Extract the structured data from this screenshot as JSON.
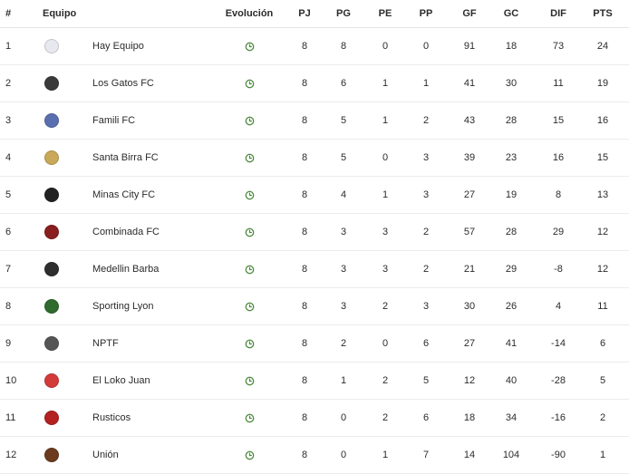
{
  "header": {
    "pos": "#",
    "team": "Equipo",
    "evo": "Evolución",
    "pj": "PJ",
    "pg": "PG",
    "pe": "PE",
    "pp": "PP",
    "gf": "GF",
    "gc": "GC",
    "dif": "DIF",
    "pts": "PTS"
  },
  "rows": [
    {
      "pos": "1",
      "team": "Hay Equipo",
      "pj": "8",
      "pg": "8",
      "pe": "0",
      "pp": "0",
      "gf": "91",
      "gc": "18",
      "dif": "73",
      "pts": "24",
      "logo_icon": "star-crest-icon",
      "logo_color": "#e8e8f0"
    },
    {
      "pos": "2",
      "team": "Los Gatos FC",
      "pj": "8",
      "pg": "6",
      "pe": "1",
      "pp": "1",
      "gf": "41",
      "gc": "30",
      "dif": "11",
      "pts": "19",
      "logo_icon": "cat-crest-icon",
      "logo_color": "#3a3a3a"
    },
    {
      "pos": "3",
      "team": "Famili FC",
      "pj": "8",
      "pg": "5",
      "pe": "1",
      "pp": "2",
      "gf": "43",
      "gc": "28",
      "dif": "15",
      "pts": "16",
      "logo_icon": "shield-crest-icon",
      "logo_color": "#5a6fb0"
    },
    {
      "pos": "4",
      "team": "Santa Birra FC",
      "pj": "8",
      "pg": "5",
      "pe": "0",
      "pp": "3",
      "gf": "39",
      "gc": "23",
      "dif": "16",
      "pts": "15",
      "logo_icon": "round-crest-icon",
      "logo_color": "#c9a85a"
    },
    {
      "pos": "5",
      "team": "Minas City FC",
      "pj": "8",
      "pg": "4",
      "pe": "1",
      "pp": "3",
      "gf": "27",
      "gc": "19",
      "dif": "8",
      "pts": "13",
      "logo_icon": "dark-shield-crest-icon",
      "logo_color": "#222222"
    },
    {
      "pos": "6",
      "team": "Combinada FC",
      "pj": "8",
      "pg": "3",
      "pe": "3",
      "pp": "2",
      "gf": "57",
      "gc": "28",
      "dif": "29",
      "pts": "12",
      "logo_icon": "red-black-crest-icon",
      "logo_color": "#8a1d1d"
    },
    {
      "pos": "7",
      "team": "Medellin Barba",
      "pj": "8",
      "pg": "3",
      "pe": "3",
      "pp": "2",
      "gf": "21",
      "gc": "29",
      "dif": "-8",
      "pts": "12",
      "logo_icon": "beard-crest-icon",
      "logo_color": "#2e2e2e"
    },
    {
      "pos": "8",
      "team": "Sporting Lyon",
      "pj": "8",
      "pg": "3",
      "pe": "2",
      "pp": "3",
      "gf": "30",
      "gc": "26",
      "dif": "4",
      "pts": "11",
      "logo_icon": "lion-crest-icon",
      "logo_color": "#2f6b2f"
    },
    {
      "pos": "9",
      "team": "NPTF",
      "pj": "8",
      "pg": "2",
      "pe": "0",
      "pp": "6",
      "gf": "27",
      "gc": "41",
      "dif": "-14",
      "pts": "6",
      "logo_icon": "figure-crest-icon",
      "logo_color": "#555555"
    },
    {
      "pos": "10",
      "team": "El Loko Juan",
      "pj": "8",
      "pg": "1",
      "pe": "2",
      "pp": "5",
      "gf": "12",
      "gc": "40",
      "dif": "-28",
      "pts": "5",
      "logo_icon": "red-round-crest-icon",
      "logo_color": "#d33a3a"
    },
    {
      "pos": "11",
      "team": "Rusticos",
      "pj": "8",
      "pg": "0",
      "pe": "2",
      "pp": "6",
      "gf": "18",
      "gc": "34",
      "dif": "-16",
      "pts": "2",
      "logo_icon": "red-shield-crest-icon",
      "logo_color": "#b32121"
    },
    {
      "pos": "12",
      "team": "Unión",
      "pj": "8",
      "pg": "0",
      "pe": "1",
      "pp": "7",
      "gf": "14",
      "gc": "104",
      "dif": "-90",
      "pts": "1",
      "logo_icon": "u-crest-icon",
      "logo_color": "#6b3a1f"
    }
  ],
  "evolution_icon": "clock-icon",
  "colors": {
    "evolution_icon": "#4a8a3a",
    "row_divider": "#ececec"
  }
}
